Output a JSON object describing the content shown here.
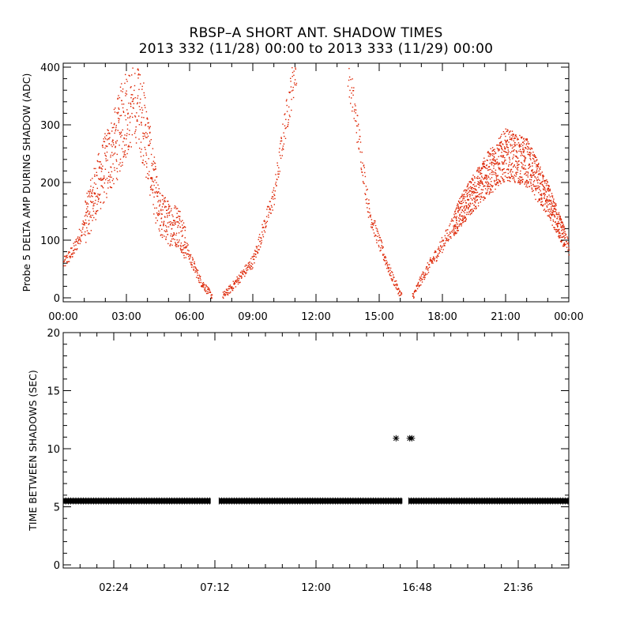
{
  "title": "RBSP–A SHORT ANT. SHADOW TIMES",
  "subtitle": "2013 332 (11/28) 00:00 to 2013 333 (11/29) 00:00",
  "colors": {
    "scatter": "#dd2200",
    "marker": "#000000",
    "axis": "#000000",
    "background": "#ffffff"
  },
  "chart_data": [
    {
      "type": "scatter",
      "ylabel": "Probe 5 DELTA AMP DURING SHADOW (ADC)",
      "xlabel": "",
      "xlim": [
        0,
        24
      ],
      "ylim": [
        0,
        400
      ],
      "x_ticks": [
        "00:00",
        "03:00",
        "06:00",
        "09:00",
        "12:00",
        "15:00",
        "18:00",
        "21:00",
        "00:00"
      ],
      "y_ticks": [
        "0",
        "100",
        "200",
        "300",
        "400"
      ],
      "x_unit": "hours",
      "series": [
        {
          "points_approx": [
            [
              0.0,
              60
            ],
            [
              0.5,
              85
            ],
            [
              1.0,
              130
            ],
            [
              1.5,
              185
            ],
            [
              2.0,
              230
            ],
            [
              2.5,
              270
            ],
            [
              3.0,
              330
            ],
            [
              3.5,
              360
            ],
            [
              4.0,
              260
            ],
            [
              4.5,
              150
            ],
            [
              5.0,
              130
            ],
            [
              5.5,
              125
            ],
            [
              6.0,
              70
            ],
            [
              6.5,
              30
            ],
            [
              7.0,
              5
            ],
            [
              7.6,
              5
            ],
            [
              8.0,
              20
            ],
            [
              9.0,
              65
            ],
            [
              10.0,
              180
            ],
            [
              10.5,
              300
            ],
            [
              11.0,
              400
            ],
            [
              13.5,
              400
            ],
            [
              14.0,
              280
            ],
            [
              14.5,
              150
            ],
            [
              15.0,
              95
            ],
            [
              15.5,
              45
            ],
            [
              16.0,
              5
            ],
            [
              16.6,
              5
            ],
            [
              17.0,
              35
            ],
            [
              18.0,
              95
            ],
            [
              19.0,
              160
            ],
            [
              20.0,
              210
            ],
            [
              21.0,
              250
            ],
            [
              22.0,
              235
            ],
            [
              23.0,
              170
            ],
            [
              24.0,
              85
            ]
          ]
        }
      ]
    },
    {
      "type": "scatter",
      "ylabel": "TIME BETWEEN SHADOWS (SEC)",
      "xlabel": "",
      "xlim": [
        0,
        24
      ],
      "ylim": [
        0,
        20
      ],
      "x_ticks": [
        "02:24",
        "07:12",
        "12:00",
        "16:48",
        "21:36"
      ],
      "y_ticks": [
        "0",
        "5",
        "10",
        "15",
        "20"
      ],
      "series": [
        {
          "baseline_value": 5.5,
          "baseline_segments": [
            [
              0.0,
              7.0
            ],
            [
              7.4,
              16.1
            ],
            [
              16.4,
              24.0
            ]
          ],
          "outliers": [
            [
              15.8,
              10.9
            ],
            [
              16.45,
              10.9
            ],
            [
              16.55,
              10.9
            ]
          ]
        }
      ]
    }
  ]
}
